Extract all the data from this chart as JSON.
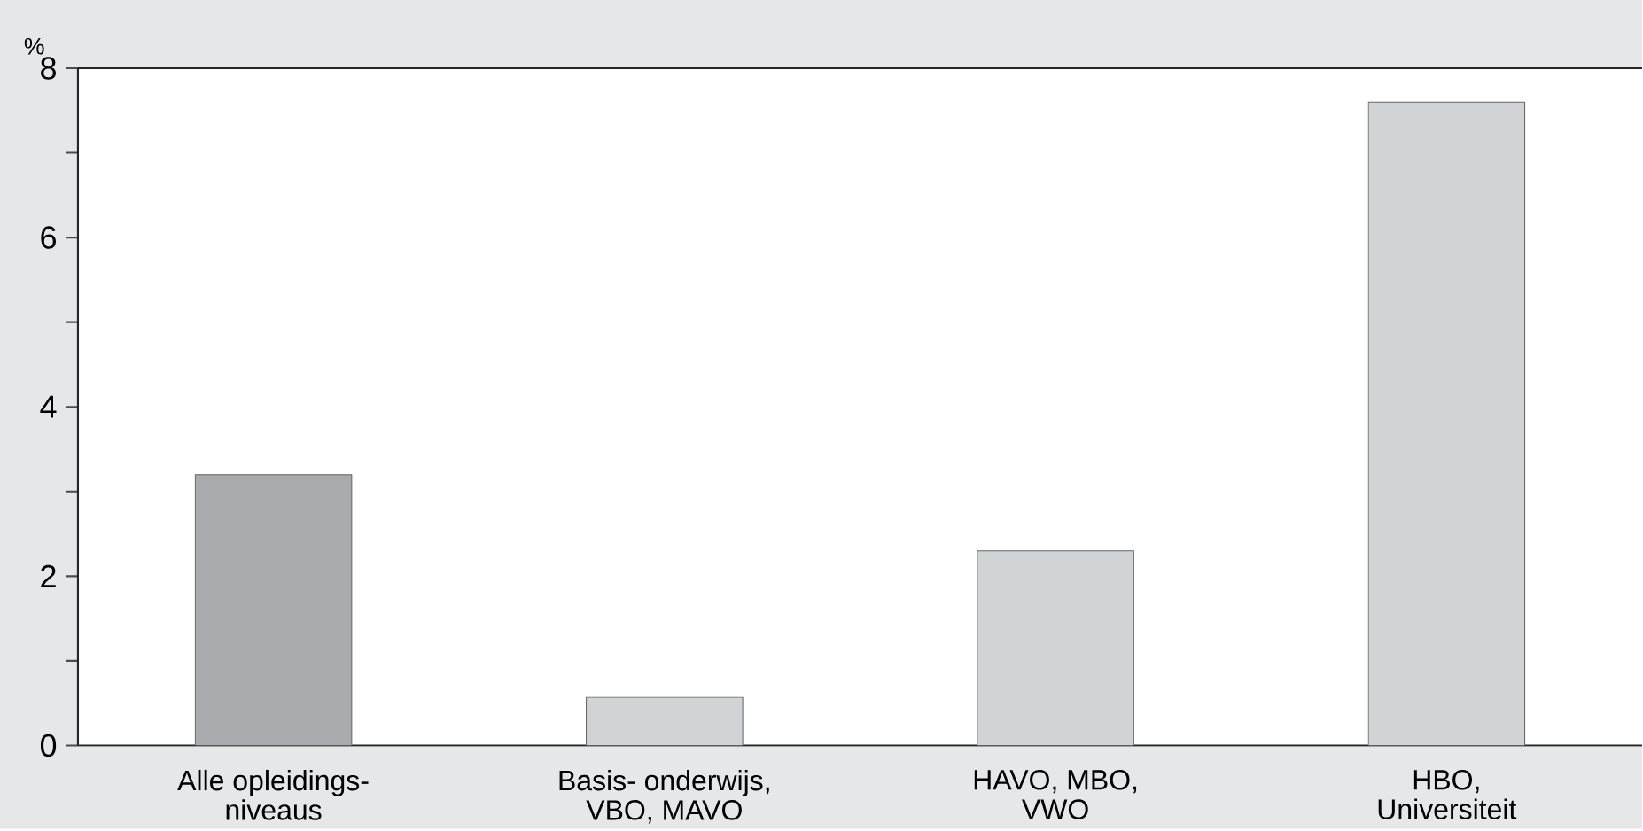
{
  "chart_data": {
    "type": "bar",
    "ylabel": "%",
    "categories": [
      "Alle opleidings-\nniveaus",
      "Basis- onderwijs,\nVBO, MAVO",
      "HAVO, MBO,\nVWO",
      "HBO,\nUniversiteit"
    ],
    "values": [
      3.2,
      0.57,
      2.3,
      7.6
    ],
    "colors": [
      "#a9aaad",
      "#d2d3d5",
      "#d2d3d5",
      "#d2d3d5"
    ],
    "ylim": [
      0,
      8
    ],
    "yticks": [
      0,
      {
        "value": 1,
        "label": null
      },
      2,
      {
        "value": 3,
        "label": null
      },
      4,
      {
        "value": 5,
        "label": null
      },
      6,
      {
        "value": 7,
        "label": null
      },
      8
    ],
    "grid": false
  }
}
